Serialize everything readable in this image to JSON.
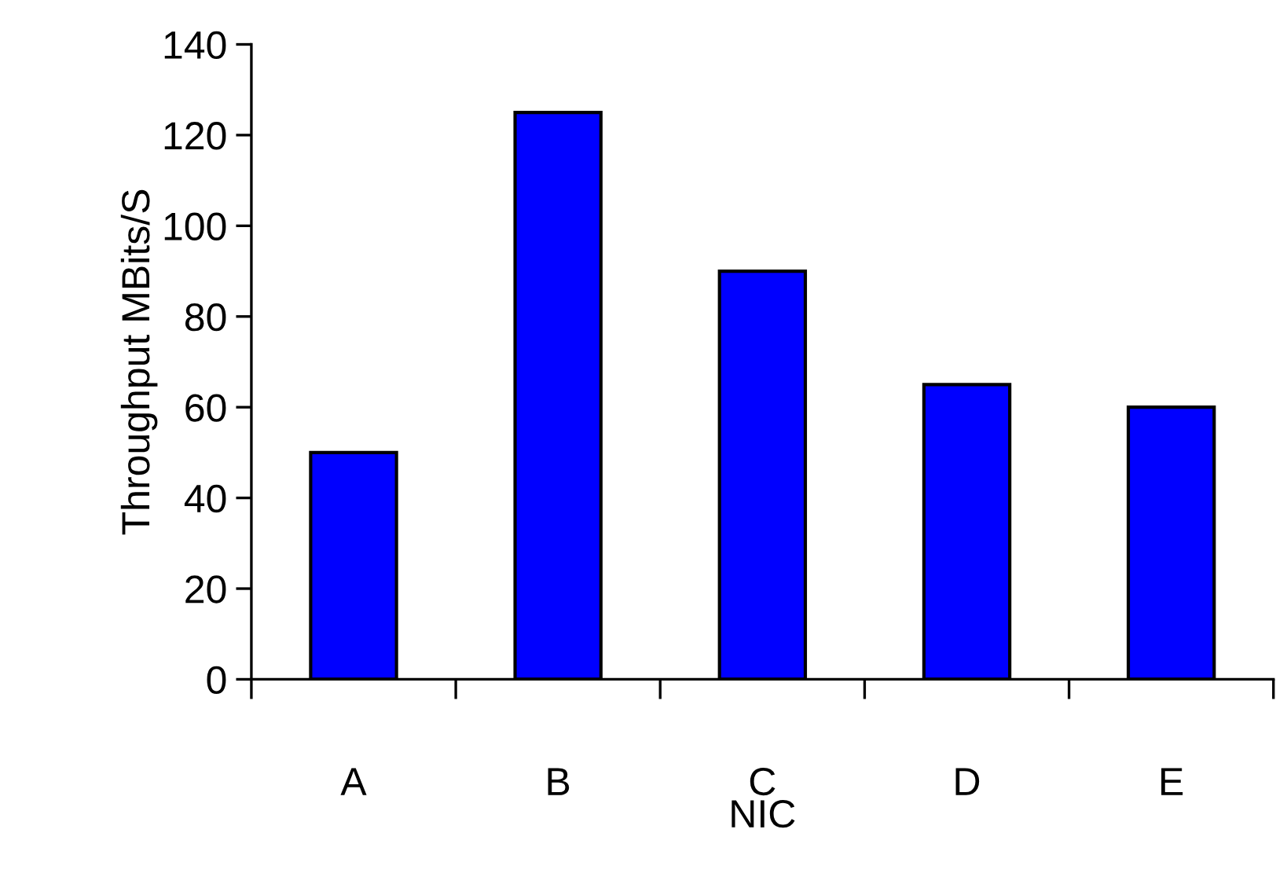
{
  "chart_data": {
    "type": "bar",
    "xlabel": "NIC",
    "ylabel": "Throughput MBits/S",
    "categories": [
      "A",
      "B",
      "C",
      "D",
      "E"
    ],
    "values": [
      50,
      125,
      90,
      65,
      60
    ],
    "color": "#0000ff",
    "ylim": [
      0,
      140
    ],
    "yticks": [
      0,
      20,
      40,
      60,
      80,
      100,
      120,
      140
    ],
    "grid": false,
    "legend": false
  }
}
